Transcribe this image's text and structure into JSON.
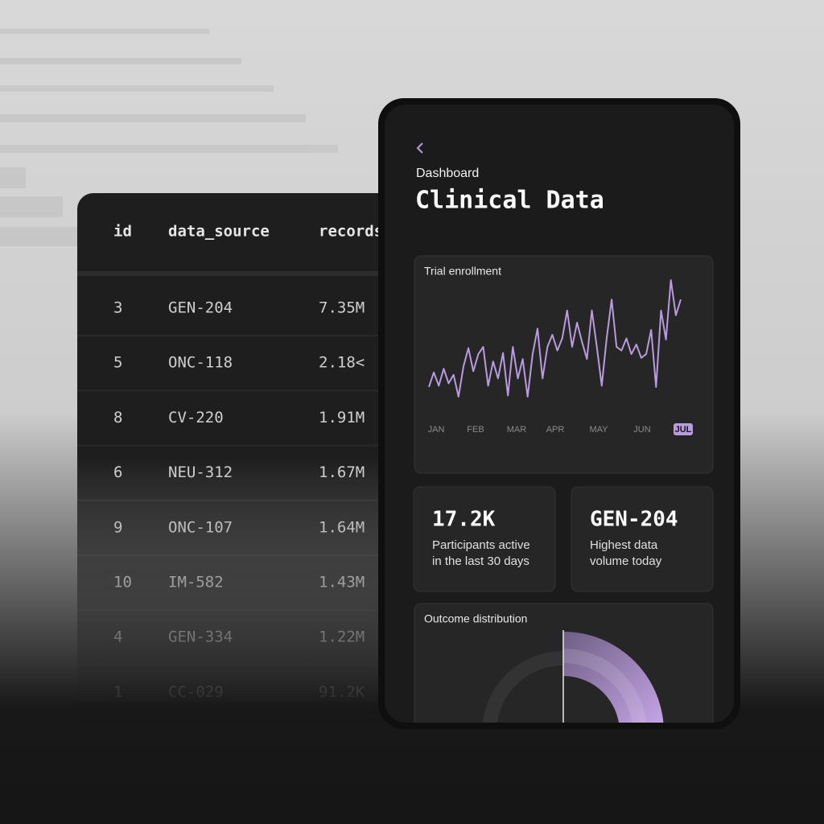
{
  "table": {
    "headers": [
      "id",
      "data_source",
      "records"
    ],
    "rows": [
      [
        "3",
        "GEN-204",
        "7.35M"
      ],
      [
        "5",
        "ONC-118",
        "2.18<"
      ],
      [
        "8",
        "CV-220",
        "1.91M"
      ],
      [
        "6",
        "NEU-312",
        "1.67M"
      ],
      [
        "9",
        "ONC-107",
        "1.64M"
      ],
      [
        "10",
        "IM-582",
        "1.43M"
      ],
      [
        "4",
        "GEN-334",
        "1.22M"
      ],
      [
        "1",
        "CC-029",
        "91.2K"
      ]
    ]
  },
  "header": {
    "breadcrumb": "Dashboard",
    "title": "Clinical Data"
  },
  "chart_data": {
    "type": "line",
    "title": "Trial enrollment",
    "months": [
      "JAN",
      "FEB",
      "MAR",
      "APR",
      "MAY",
      "JUN",
      "JUL"
    ],
    "selected": "JUL",
    "color": "#b99be0",
    "values": [
      10,
      22,
      11,
      25,
      13,
      20,
      2,
      27,
      42,
      23,
      37,
      43,
      11,
      31,
      17,
      38,
      3,
      43,
      17,
      33,
      2,
      37,
      58,
      17,
      43,
      53,
      40,
      50,
      73,
      43,
      63,
      47,
      33,
      73,
      43,
      11,
      50,
      82,
      43,
      40,
      50,
      37,
      45,
      34,
      37,
      57,
      10,
      73,
      49,
      98,
      69,
      82
    ]
  },
  "stats": [
    {
      "value": "17.2K",
      "lines": [
        "Participants active",
        "in the last 30 days"
      ]
    },
    {
      "value": "GEN-204",
      "lines": [
        "Highest data",
        "volume today"
      ]
    }
  ],
  "outcome": {
    "title": "Outcome distribution"
  }
}
